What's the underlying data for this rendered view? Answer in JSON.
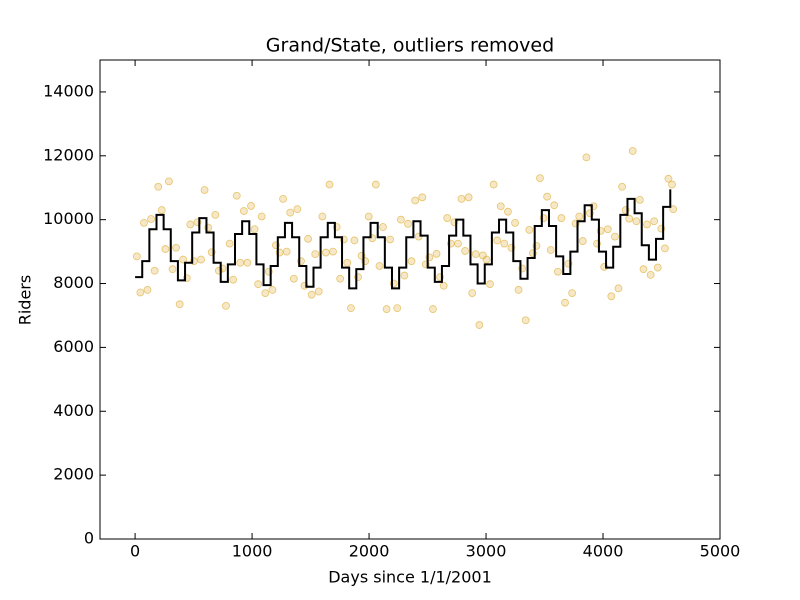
{
  "chart_data": {
    "type": "scatter",
    "title": "Grand/State, outliers removed",
    "x_label": "Days since 1/1/2001",
    "y_label": "Riders",
    "xlim": [
      -300,
      5000
    ],
    "ylim": [
      0,
      15000
    ],
    "xticks": [
      0,
      1000,
      2000,
      3000,
      4000,
      5000
    ],
    "yticks": [
      0,
      2000,
      4000,
      6000,
      8000,
      10000,
      12000,
      14000
    ],
    "grid": false,
    "series": [
      {
        "type": "scatter",
        "color": "#daa520",
        "x": [
          15,
          45,
          76,
          106,
          137,
          167,
          198,
          228,
          259,
          289,
          320,
          350,
          381,
          411,
          442,
          472,
          503,
          533,
          564,
          594,
          625,
          655,
          686,
          716,
          747,
          777,
          808,
          838,
          869,
          899,
          930,
          960,
          991,
          1021,
          1052,
          1082,
          1113,
          1143,
          1174,
          1204,
          1235,
          1265,
          1296,
          1326,
          1357,
          1387,
          1418,
          1448,
          1479,
          1509,
          1540,
          1570,
          1601,
          1631,
          1662,
          1692,
          1723,
          1753,
          1784,
          1814,
          1845,
          1875,
          1906,
          1936,
          1967,
          1997,
          2028,
          2058,
          2089,
          2119,
          2150,
          2180,
          2211,
          2241,
          2272,
          2302,
          2333,
          2363,
          2394,
          2424,
          2455,
          2485,
          2516,
          2546,
          2577,
          2607,
          2638,
          2668,
          2699,
          2729,
          2760,
          2790,
          2821,
          2851,
          2882,
          2912,
          2943,
          2973,
          3004,
          3034,
          3065,
          3095,
          3126,
          3156,
          3187,
          3217,
          3248,
          3278,
          3309,
          3339,
          3370,
          3400,
          3431,
          3461,
          3492,
          3522,
          3553,
          3583,
          3614,
          3644,
          3675,
          3705,
          3736,
          3766,
          3797,
          3827,
          3858,
          3888,
          3919,
          3949,
          3980,
          4010,
          4041,
          4071,
          4102,
          4132,
          4163,
          4193,
          4224,
          4254,
          4285,
          4315,
          4346,
          4376,
          4407,
          4437,
          4468,
          4498,
          4529,
          4559,
          4590,
          4600
        ],
        "values": [
          8850,
          7720,
          9900,
          7800,
          10020,
          8400,
          11030,
          10300,
          9080,
          11200,
          8450,
          9120,
          7350,
          8750,
          8170,
          9850,
          8700,
          9920,
          8750,
          10930,
          9750,
          8980,
          10150,
          8400,
          8470,
          7300,
          9250,
          8120,
          10750,
          8650,
          10270,
          8650,
          10430,
          9700,
          7980,
          10100,
          7700,
          8370,
          7800,
          9200,
          8970,
          10650,
          9000,
          10220,
          8150,
          10330,
          8700,
          7930,
          9400,
          7650,
          8920,
          7750,
          10100,
          8970,
          11100,
          9000,
          9770,
          8150,
          9380,
          8650,
          7230,
          9350,
          8200,
          8870,
          8700,
          10100,
          9420,
          11100,
          8550,
          9770,
          7200,
          9380,
          8000,
          7230,
          10000,
          8250,
          9870,
          8700,
          10600,
          9470,
          10700,
          8600,
          8820,
          7200,
          8930,
          8200,
          7930,
          10050,
          9250,
          9920,
          9250,
          10650,
          9020,
          10700,
          7700,
          8920,
          6700,
          8880,
          8750,
          7980,
          11100,
          9350,
          10420,
          9250,
          10250,
          9120,
          9900,
          7800,
          8470,
          6850,
          9680,
          8950,
          9180,
          11300,
          10050,
          10720,
          9050,
          10450,
          8370,
          10050,
          7400,
          8620,
          7700,
          9880,
          10100,
          9330,
          11950,
          10200,
          10420,
          9250,
          9650,
          8520,
          9700,
          7600,
          9470,
          7850,
          11030,
          10300,
          10030,
          12150,
          9950,
          10620,
          8450,
          9850,
          8270,
          9950,
          8500,
          9720,
          9100,
          11280,
          11100,
          10330
        ]
      },
      {
        "type": "step",
        "color": "#000000",
        "x": [
          0,
          61,
          122,
          183,
          244,
          305,
          366,
          427,
          488,
          549,
          610,
          671,
          732,
          793,
          854,
          915,
          976,
          1037,
          1098,
          1159,
          1220,
          1281,
          1342,
          1403,
          1464,
          1525,
          1586,
          1647,
          1708,
          1769,
          1830,
          1891,
          1952,
          2013,
          2074,
          2135,
          2196,
          2257,
          2318,
          2379,
          2440,
          2501,
          2562,
          2623,
          2684,
          2745,
          2806,
          2867,
          2928,
          2989,
          3050,
          3111,
          3172,
          3233,
          3294,
          3355,
          3416,
          3477,
          3538,
          3599,
          3660,
          3721,
          3782,
          3843,
          3904,
          3965,
          4026,
          4087,
          4148,
          4209,
          4270,
          4331,
          4392,
          4453,
          4514,
          4575
        ],
        "values": [
          8200,
          8700,
          9700,
          10150,
          9700,
          8700,
          8100,
          8650,
          9600,
          10050,
          9600,
          8650,
          8050,
          8600,
          9550,
          9950,
          9550,
          8600,
          7950,
          8550,
          9450,
          9900,
          9450,
          8550,
          7900,
          8500,
          9450,
          9900,
          9450,
          8500,
          7850,
          8450,
          9450,
          9900,
          9450,
          8500,
          7850,
          8500,
          9450,
          9950,
          9500,
          8500,
          8050,
          8550,
          9500,
          10000,
          9500,
          8600,
          8000,
          8600,
          9600,
          10000,
          9600,
          8700,
          8150,
          8800,
          9800,
          10300,
          9800,
          8850,
          8300,
          9000,
          9950,
          10450,
          10000,
          9000,
          8500,
          9150,
          10150,
          10650,
          10200,
          9200,
          8750,
          9400,
          10400,
          10950
        ]
      }
    ]
  }
}
